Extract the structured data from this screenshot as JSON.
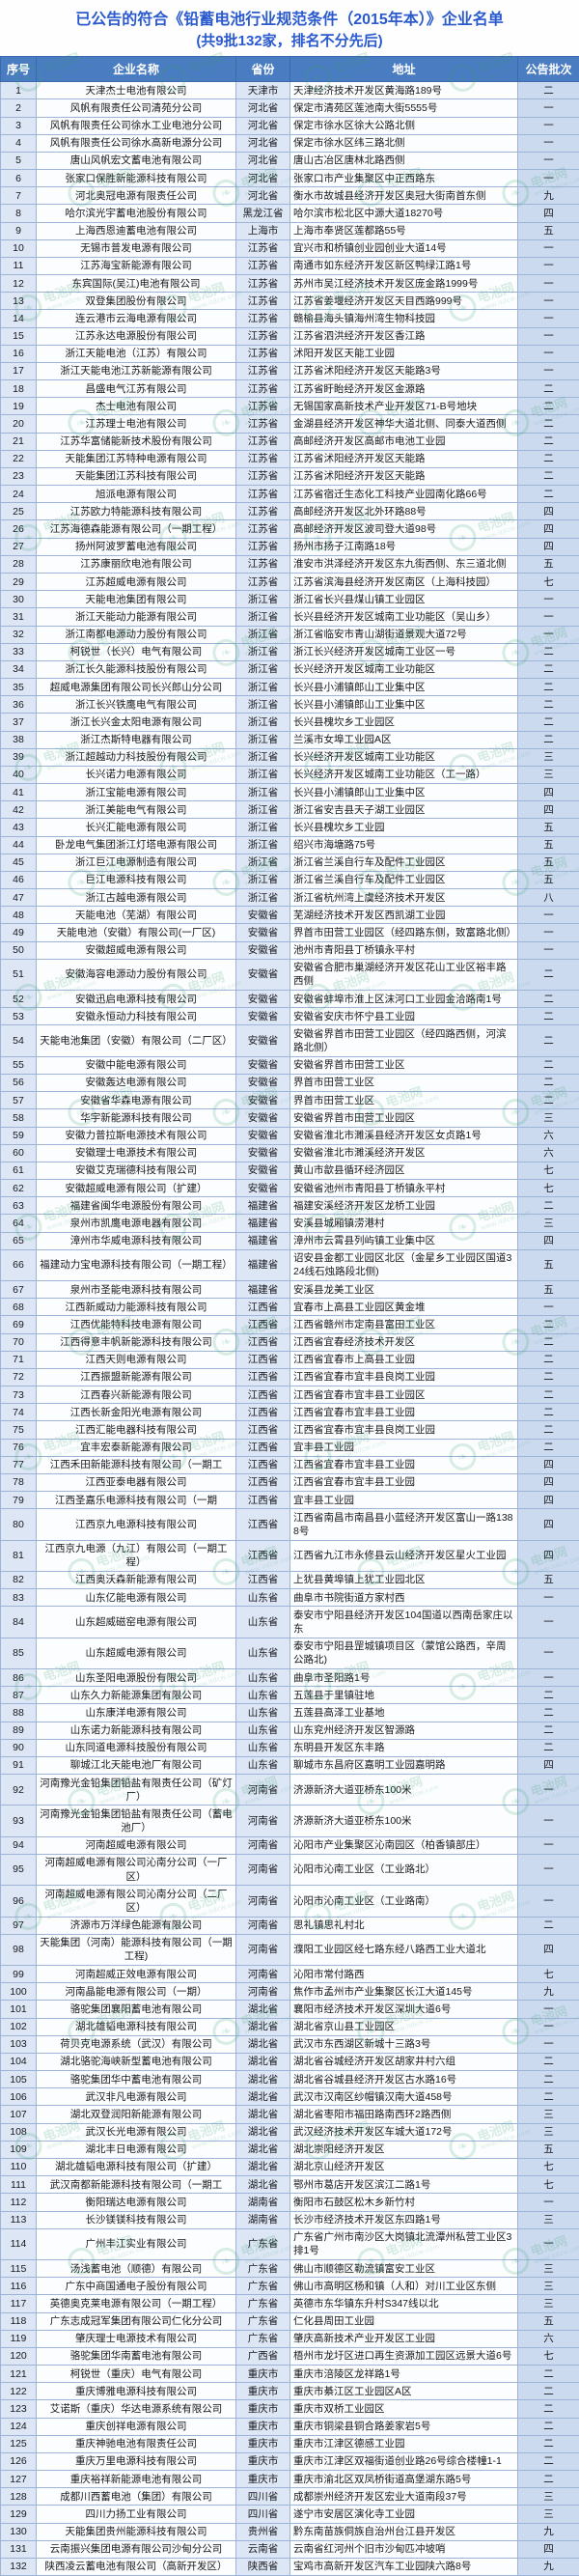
{
  "title": {
    "line1": "已公告的符合《铅蓄电池行业规范条件（2015年本）》企业名单",
    "line2": "(共9批132家，排名不分先后)"
  },
  "watermark": {
    "text": "电池网",
    "subtext": "www.itdcw.com",
    "color": "#35a468",
    "leaf": "❧"
  },
  "colors": {
    "title_blue": "#2a5ace",
    "header_bg": "#4a7cc2",
    "border": "#9db4d8",
    "tint_light": "#dde6f5",
    "tint_batch": "#ccdaf0"
  },
  "table": {
    "columns": [
      "序号",
      "企业名称",
      "省份",
      "地址",
      "公告批次"
    ],
    "rows": [
      [
        "1",
        "天津杰士电池有限公司",
        "天津市",
        "天津经济技术开发区黄海路189号",
        "二"
      ],
      [
        "2",
        "风帆有限责任公司清苑分公司",
        "河北省",
        "保定市清苑区莲池南大街5555号",
        "一"
      ],
      [
        "3",
        "风帆有限责任公司徐水工业电池分公司",
        "河北省",
        "保定市徐水区徐大公路北侧",
        "一"
      ],
      [
        "4",
        "风帆有限责任公司徐水高新电源分公司",
        "河北省",
        "保定市徐水区纬三路北侧",
        "一"
      ],
      [
        "5",
        "唐山风帆宏文蓄电池有限公司",
        "河北省",
        "唐山古冶区唐林北路西侧",
        "一"
      ],
      [
        "6",
        "张家口保胜新能源科技有限公司",
        "河北省",
        "张家口市产业集聚区中正西路东",
        "一"
      ],
      [
        "7",
        "河北奥冠电源有限责任公司",
        "河北省",
        "衡水市故城县经济开发区奥冠大街南首东侧",
        "九"
      ],
      [
        "8",
        "哈尔滨光宇蓄电池股份有限公司",
        "黑龙江省",
        "哈尔滨市松北区中源大道18270号",
        "四"
      ],
      [
        "9",
        "上海西恩迪蓄电池有限公司",
        "上海市",
        "上海市奉贤区莲都路55号",
        "五"
      ],
      [
        "10",
        "无锡市普发电源有限公司",
        "江苏省",
        "宜兴市和桥镇创业园创业大道14号",
        "一"
      ],
      [
        "11",
        "江苏海宝新能源有限公司",
        "江苏省",
        "南通市如东经济开发区新区鸭绿江路1号",
        "一"
      ],
      [
        "12",
        "东宾国际(吴江)电池有限公司",
        "江苏省",
        "苏州市吴江经济技术开发区庞金路1999号",
        "一"
      ],
      [
        "13",
        "双登集团股份有限公司",
        "江苏省",
        "江苏省姜堰经济开发区天目西路999号",
        "一"
      ],
      [
        "14",
        "连云港市云海电源有限公司",
        "江苏省",
        "赣榆县海头镇海州湾生物科技园",
        "一"
      ],
      [
        "15",
        "江苏永达电源股份有限公司",
        "江苏省",
        "江苏省泗洪经济开发区香江路",
        "一"
      ],
      [
        "16",
        "浙江天能电池（江苏）有限公司",
        "江苏省",
        "沭阳开发区天能工业园",
        "一"
      ],
      [
        "17",
        "浙江天能电池江苏新能源有限公司",
        "江苏省",
        "江苏省沭阳经济开发区天能路3号",
        "一"
      ],
      [
        "18",
        "昌盛电气江苏有限公司",
        "江苏省",
        "江苏省盱眙经济开发区金源路",
        "二"
      ],
      [
        "19",
        "杰士电池有限公司",
        "江苏省",
        "无锡国家高新技术产业开发区71-B号地块",
        "二"
      ],
      [
        "20",
        "江苏理士电池有限公司",
        "江苏省",
        "金湖县经济开发区神华大道北侧、同泰大道西侧",
        "二"
      ],
      [
        "21",
        "江苏华富储能新技术股份有限公司",
        "江苏省",
        "高邮经济开发区高邮市电池工业园",
        "二"
      ],
      [
        "22",
        "天能集团江苏特种电源有限公司",
        "江苏省",
        "江苏省沭阳经济开发区天能路",
        "二"
      ],
      [
        "23",
        "天能集团江苏科技有限公司",
        "江苏省",
        "江苏省沭阳经济开发区天能路",
        "二"
      ],
      [
        "24",
        "旭派电源有限公司",
        "江苏省",
        "江苏省宿迁生态化工科技产业园南化路66号",
        "二"
      ],
      [
        "25",
        "江苏欧力特能源科技有限公司",
        "江苏省",
        "高邮经济开发区北外环路88号",
        "四"
      ],
      [
        "26",
        "江苏海德森能源有限公司（一期工程）",
        "江苏省",
        "高邮经济开发区波司登大道98号",
        "四"
      ],
      [
        "27",
        "扬州阿波罗蓄电池有限公司",
        "江苏省",
        "扬州市扬子江南路18号",
        "四"
      ],
      [
        "28",
        "江苏康丽欣电池有限公司",
        "江苏省",
        "淮安市洪泽经济开发区东九街西侧、东三道北侧",
        "五"
      ],
      [
        "29",
        "江苏超威电源有限公司",
        "江苏省",
        "江苏省滨海县经济开发区南区（上海科技园）",
        "七"
      ],
      [
        "30",
        "天能电池集团有限公司",
        "浙江省",
        "浙江省长兴县煤山镇工业园区",
        "一"
      ],
      [
        "31",
        "浙江天能动力能源有限公司",
        "浙江省",
        "长兴县经济开发区城南工业功能区（吴山乡）",
        "一"
      ],
      [
        "32",
        "浙江南都电源动力股份有限公司",
        "浙江省",
        "浙江省临安市青山湖街道景观大道72号",
        "一"
      ],
      [
        "33",
        "柯锐世（长兴）电气有限公司",
        "浙江省",
        "浙江长兴经济开发区城南工业区一号",
        "二"
      ],
      [
        "34",
        "浙江长久能源科技股份有限公司",
        "浙江省",
        "长兴经济开发区城南工业功能区",
        "二"
      ],
      [
        "35",
        "超威电源集团有限公司长兴郎山分公司",
        "浙江省",
        "长兴县小浦镇郎山工业集中区",
        "二"
      ],
      [
        "36",
        "浙江长兴铁鹰电气有限公司",
        "浙江省",
        "长兴县小浦镇郎山工业集中区",
        "二"
      ],
      [
        "37",
        "浙江长兴金太阳电源有限公司",
        "浙江省",
        "长兴县槐坎乡工业园区",
        "二"
      ],
      [
        "38",
        "浙江杰斯特电器有限公司",
        "浙江省",
        "兰溪市女埠工业园A区",
        "二"
      ],
      [
        "39",
        "浙江超越动力科技股份有限公司",
        "浙江省",
        "长兴经济开发区城南工业功能区",
        "三"
      ],
      [
        "40",
        "长兴诺力电源有限公司",
        "浙江省",
        "长兴经济开发区城南工业功能区（工一路）",
        "三"
      ],
      [
        "41",
        "浙江宝能电源有限公司",
        "浙江省",
        "长兴县小浦镇郎山工业集中区",
        "四"
      ],
      [
        "42",
        "浙江美能电气有限公司",
        "浙江省",
        "浙江省安吉县天子湖工业园区",
        "四"
      ],
      [
        "43",
        "长兴汇能电源有限公司",
        "浙江省",
        "长兴县槐坎乡工业园",
        "五"
      ],
      [
        "44",
        "卧龙电气集团浙江灯塔电源有限公司",
        "浙江省",
        "绍兴市海塘路75号",
        "五"
      ],
      [
        "45",
        "浙江巨江电源制造有限公司",
        "浙江省",
        "浙江省兰溪自行车及配件工业园区",
        "五"
      ],
      [
        "46",
        "巨江电源科技有限公司",
        "浙江省",
        "浙江省兰溪自行车及配件工业园区",
        "五"
      ],
      [
        "47",
        "浙江古越电源有限公司",
        "浙江省",
        "浙江省杭州湾上虞经济技术开发区",
        "八"
      ],
      [
        "48",
        "天能电池（芜湖）有限公司",
        "安徽省",
        "芜湖经济技术开发区西凯湖工业园",
        "一"
      ],
      [
        "49",
        "天能电池（安徽）有限公司(一厂区)",
        "安徽省",
        "界首市田营工业园区（经四路东侧，致富路北侧）",
        "一"
      ],
      [
        "50",
        "安徽超威电源有限公司",
        "安徽省",
        "池州市青阳县丁桥镇永平村",
        "一"
      ],
      [
        "51",
        "安徽海容电源动力股份有限公司",
        "安徽省",
        "安徽省合肥市巢湖经济开发区花山工业区裕丰路西侧",
        "二"
      ],
      [
        "52",
        "安徽迅启电源科技有限公司",
        "安徽省",
        "安徽省蚌埠市淮上区沫河口工业园金洽路南1号",
        "二"
      ],
      [
        "53",
        "安徽永恒动力科技有限公司",
        "安徽省",
        "安徽省安庆市怀宁县工业园",
        "二"
      ],
      [
        "54",
        "天能电池集团（安徽）有限公司（二厂区）",
        "安徽省",
        "安徽省界首市田营工业园区（经四路西侧，河滨路北侧）",
        "二"
      ],
      [
        "55",
        "安徽中能电源有限公司",
        "安徽省",
        "安徽省界首市田营工业区",
        "二"
      ],
      [
        "56",
        "安徽轰达电源有限公司",
        "安徽省",
        "界首市田营工业区",
        "二"
      ],
      [
        "57",
        "安徽省华森电源有限公司",
        "安徽省",
        "界首市田营工业区",
        "二"
      ],
      [
        "58",
        "华宇新能源科技有限公司",
        "安徽省",
        "安徽省界首市田营工业园区",
        "三"
      ],
      [
        "59",
        "安徽力普拉斯电源技术有限公司",
        "安徽省",
        "安徽省淮北市濉溪县经济开发区女贞路1号",
        "六"
      ],
      [
        "60",
        "安徽理士电源技术有限公司",
        "安徽省",
        "安徽省淮北市濉溪经济开发区",
        "六"
      ],
      [
        "61",
        "安徽艾克瑞德科技有限公司",
        "安徽省",
        "黄山市歙县循环经济园区",
        "七"
      ],
      [
        "62",
        "安徽超威电源有限公司（扩建）",
        "安徽省",
        "安徽省池州市青阳县丁桥镇永平村",
        "七"
      ],
      [
        "63",
        "福建省闽华电源股份有限公司",
        "福建省",
        "福建安溪经济开发区龙桥工业园",
        "二"
      ],
      [
        "64",
        "泉州市凯鹰电源电器有限公司",
        "福建省",
        "安溪县城厢镇涝港村",
        "三"
      ],
      [
        "65",
        "漳州市华威电源科技有限公司",
        "福建省",
        "漳州市云霄县列屿镇工业集中区",
        "四"
      ],
      [
        "66",
        "福建动力宝电源科技有限公司（一期工程）",
        "福建省",
        "诏安县金都工业园区北区（金星乡工业园区国道324线石烛路段北侧)",
        "五"
      ],
      [
        "67",
        "泉州市圣能电源科技有限公司",
        "福建省",
        "安溪县龙美工业区",
        "五"
      ],
      [
        "68",
        "江西新威动力能源科技有限公司",
        "江西省",
        "宜春市上高县工业园区黄金堆",
        "一"
      ],
      [
        "69",
        "江西优能特科技电源有限公司",
        "江西省",
        "江西省赣州市定南县富田工业区",
        "二"
      ],
      [
        "70",
        "江西得意丰帆新能源科技有限公司",
        "江西省",
        "江西省宜春经济技术开发区",
        "二"
      ],
      [
        "71",
        "江西天则电源有限公司",
        "江西省",
        "江西省宜春市上高县工业园",
        "二"
      ],
      [
        "72",
        "江西振盟新能源有限公司",
        "江西省",
        "江西省宜春市宜丰县良岗工业园",
        "二"
      ],
      [
        "73",
        "江西春兴新能源有限公司",
        "江西省",
        "江西省宜春市宜丰县工业园区",
        "二"
      ],
      [
        "74",
        "江西长新金阳光电源有限公司",
        "江西省",
        "江西省宜春市宜丰县工业园",
        "二"
      ],
      [
        "75",
        "江西汇能电器科技有限公司",
        "江西省",
        "江西省宜春市宜丰县良岗工业园",
        "二"
      ],
      [
        "76",
        "宜丰宏泰新能源有限公司",
        "江西省",
        "宜丰县工业园",
        "二"
      ],
      [
        "77",
        "江西禾田新能源科技有限公司（一期工",
        "江西省",
        "江西省宜春市宜丰县工业园",
        "四"
      ],
      [
        "78",
        "江西亚泰电器有限公司",
        "江西省",
        "江西省宜春市宜丰县工业园",
        "四"
      ],
      [
        "79",
        "江西圣嘉乐电源科技有限公司（一期",
        "江西省",
        "宜丰县工业园",
        "四"
      ],
      [
        "80",
        "江西京九电源科技有限公司",
        "江西省",
        "江西省南昌市南昌县小蓝经济开发区富山一路1388号",
        "四"
      ],
      [
        "81",
        "江西京九电源（九江）有限公司（一期工程）",
        "江西省",
        "江西省九江市永修县云山经济开发区星火工业园",
        "四"
      ],
      [
        "82",
        "江西奥沃森新能源有限公司",
        "江西省",
        "上犹县黄埠镇上犹工业园北区",
        "五"
      ],
      [
        "83",
        "山东亿能电源有限公司",
        "山东省",
        "曲阜市书院街道方家村西",
        "一"
      ],
      [
        "84",
        "山东超威磁窑电源有限公司",
        "山东省",
        "泰安市宁阳县经济开发区104国道以西南岳家庄以东",
        "一"
      ],
      [
        "85",
        "山东超威电源有限公司",
        "山东省",
        "泰安市宁阳县罡城镇项目区（蒙馆公路西，辛周公路北)",
        "一"
      ],
      [
        "86",
        "山东圣阳电源股份有限公司",
        "山东省",
        "曲阜市圣阳路1号",
        "一"
      ],
      [
        "87",
        "山东久力新能源集团有限公司",
        "山东省",
        "五莲县于里镇驻地",
        "二"
      ],
      [
        "88",
        "山东康洋电源有限公司",
        "山东省",
        "五莲县高泽工业基地",
        "二"
      ],
      [
        "89",
        "山东诺力新能源科技有限公司",
        "山东省",
        "山东兖州经济开发区智源路",
        "二"
      ],
      [
        "90",
        "山东同道电源科技股份有限公司",
        "山东省",
        "东明县开发区东丰路",
        "二"
      ],
      [
        "91",
        "聊城江北天能电池厂有限公司",
        "山东省",
        "聊城市东昌府区嘉明工业园嘉明路",
        "四"
      ],
      [
        "92",
        "河南豫光金铅集团铅盐有限责任公司（矿灯厂）",
        "河南省",
        "济源新济大道亚桥东100米",
        "一"
      ],
      [
        "93",
        "河南豫光金铅集团铅盐有限责任公司（蓄电池厂）",
        "河南省",
        "济源新济大道亚桥东100米",
        "一"
      ],
      [
        "94",
        "河南超威电源有限公司",
        "河南省",
        "沁阳市产业集聚区沁南园区（柏香镇部庄）",
        "一"
      ],
      [
        "95",
        "河南超威电源有限公司沁南分公司（一厂区）",
        "河南省",
        "沁阳市沁南工业区（工业路北）",
        "一"
      ],
      [
        "96",
        "河南超威电源有限公司沁南分公司（二厂区）",
        "河南省",
        "沁阳市沁南工业区（工业路南）",
        "一"
      ],
      [
        "97",
        "济源市万洋绿色能源有限公司",
        "河南省",
        "思礼镇思礼村北",
        "二"
      ],
      [
        "98",
        "天能集团（河南）能源科技有限公司（一期工程)",
        "河南省",
        "濮阳工业园区经七路东经八路西工业大道北",
        "四"
      ],
      [
        "99",
        "河南超威正效电源有限公司",
        "河南省",
        "沁阳市常付路西",
        "七"
      ],
      [
        "100",
        "河南晶能电源有限公司（一期）",
        "河南省",
        "焦作市孟州市产业集聚区长江大道145号",
        "九"
      ],
      [
        "101",
        "骆驼集团襄阳蓄电池有限公司",
        "湖北省",
        "襄阳市经济技术开发区深圳大道6号",
        "一"
      ],
      [
        "102",
        "湖北雄韬电源科技有限公司",
        "湖北省",
        "湖北省京山县工业园区",
        "一"
      ],
      [
        "103",
        "荷贝克电源系统（武汉）有限公司",
        "湖北省",
        "武汉市东西湖区新城十三路3号",
        "一"
      ],
      [
        "104",
        "湖北骆驼海峡新型蓄电池有限公司",
        "湖北省",
        "湖北省谷城经济开发区胡家井村六组",
        "二"
      ],
      [
        "105",
        "骆驼集团华中蓄电池有限公司",
        "湖北省",
        "湖北省谷城县经济开发区古水路16号",
        "二"
      ],
      [
        "106",
        "武汉非凡电源有限公司",
        "湖北省",
        "武汉市汉南区纱帽镇汉南大道458号",
        "二"
      ],
      [
        "107",
        "湖北双登润阳新能源有限公司",
        "湖北省",
        "湖北省枣阳市福田路南西环2路西侧",
        "三"
      ],
      [
        "108",
        "武汉长光电源有限公司",
        "湖北省",
        "武汉经济技术开发区车城大道172号",
        "三"
      ],
      [
        "109",
        "湖北丰日电源有限公司",
        "湖北省",
        "湖北崇阳经济开发区",
        "五"
      ],
      [
        "110",
        "湖北雄韬电源科技有限公司（扩建）",
        "湖北省",
        "湖北京山经济开发区",
        "七"
      ],
      [
        "111",
        "武汉南都新能源科技有限公司（一期工",
        "湖北省",
        "鄂州市葛店开发区滨江二路1号",
        "七"
      ],
      [
        "112",
        "衡阳瑞达电源有限公司",
        "湖南省",
        "衡阳市石鼓区松木乡新竹村",
        "一"
      ],
      [
        "113",
        "长沙镁镁科技有限公司",
        "湖南省",
        "长沙市经济技术开发区东四路1号",
        "三"
      ],
      [
        "114",
        "广州丰江实业有限公司",
        "广东省",
        "广东省广州市南沙区大岗镇北流潭州私营工业区3排1号",
        "一"
      ],
      [
        "115",
        "汤浅蓄电池（顺德）有限公司",
        "广东省",
        "佛山市顺德区勒流镇富安工业区",
        "三"
      ],
      [
        "116",
        "广东中商国通电子股份有限公司",
        "广东省",
        "佛山市高明区杨和镇（人和）对川工业区东侧",
        "三"
      ],
      [
        "117",
        "英德奥克莱电源有限公司（一期工程）",
        "广东省",
        "英德市东华镇东升村S347线以北",
        "三"
      ],
      [
        "118",
        "广东志成冠军集团有限公司仁化分公司",
        "广东省",
        "仁化县周田工业园",
        "五"
      ],
      [
        "119",
        "肇庆理士电源技术有限公司",
        "广东省",
        "肇庆高新技术产业开发区工业园",
        "六"
      ],
      [
        "120",
        "骆驼集团华南蓄电池有限公司",
        "广西省",
        "梧州市龙圩区进口再生资源加工园区远景大道6号",
        "七"
      ],
      [
        "121",
        "柯锐世（重庆）电气有限公司",
        "重庆市",
        "重庆市涪陵区龙祥路1号",
        "二"
      ],
      [
        "122",
        "重庆博雅电源科技有限公司",
        "重庆市",
        "重庆市綦江区工业园区A区",
        "二"
      ],
      [
        "123",
        "艾诺斯（重庆）华达电源系统有限公司",
        "重庆市",
        "重庆市双桥工业园区",
        "二"
      ],
      [
        "124",
        "重庆创祥电源有限公司",
        "重庆市",
        "重庆市铜梁县铜合路姜家岩5号",
        "二"
      ],
      [
        "125",
        "重庆神驰电池有限责任公司",
        "重庆市",
        "重庆市江津区德感工业园",
        "二"
      ],
      [
        "126",
        "重庆万里电源科技有限公司",
        "重庆市",
        "重庆市江津区双福街道创业路26号综合楼幢1-1",
        "二"
      ],
      [
        "127",
        "重庆裕祥新能源电池有限公司",
        "重庆市",
        "重庆市渝北区双凤桥街道高堡湖东路5号",
        "二"
      ],
      [
        "128",
        "成都川西蓄电池（集团）有限公司",
        "四川省",
        "成都崇州经济开发区宏业大道南段37号",
        "三"
      ],
      [
        "129",
        "四川力扬工业有限公司",
        "四川省",
        "遂宁市安居区演化寺工业园",
        "三"
      ],
      [
        "130",
        "天能集团贵州能源科技有限公司",
        "贵州省",
        "黔东南苗族侗族自治州台江县开发区",
        "九"
      ],
      [
        "131",
        "云南振兴集团电源有限公司沙甸分公司",
        "云南省",
        "云南省红河州个旧市沙甸匹冲坡哨",
        "四"
      ],
      [
        "132",
        "陕西凌云蓄电池有限公司（高新开发区）",
        "陕西省",
        "宝鸡市高新开发区汽车工业园陕六路8号",
        "九"
      ]
    ]
  }
}
